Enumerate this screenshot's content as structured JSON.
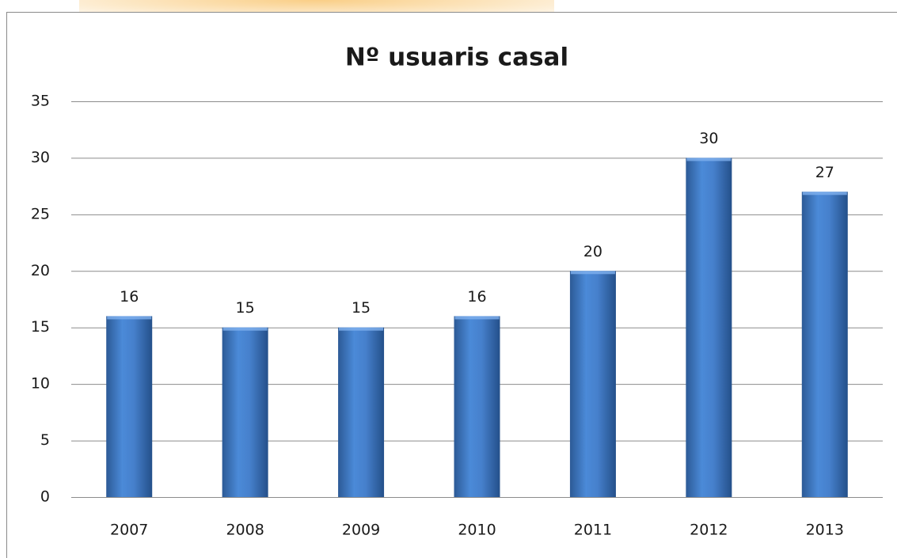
{
  "chart_data": {
    "type": "bar",
    "title": "Nº usuaris casal",
    "categories": [
      "2007",
      "2008",
      "2009",
      "2010",
      "2011",
      "2012",
      "2013"
    ],
    "values": [
      16,
      15,
      15,
      16,
      20,
      30,
      27
    ],
    "color": "#4a86d4",
    "ylim": [
      0,
      35
    ],
    "yticks": [
      0,
      5,
      10,
      15,
      20,
      25,
      30,
      35
    ],
    "grid": true
  }
}
